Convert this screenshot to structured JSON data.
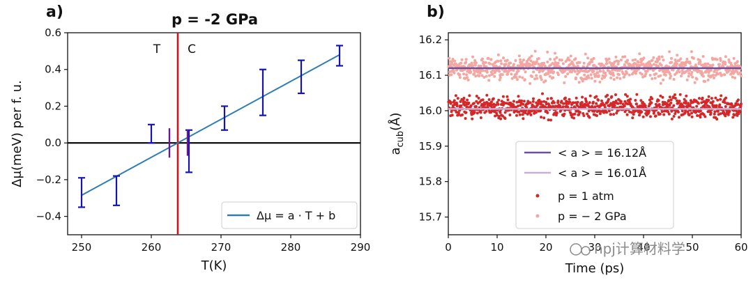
{
  "chart_data": [
    {
      "panel": "a)",
      "type": "scatter",
      "title": "p = -2 GPa",
      "xlabel": "T(K)",
      "ylabel": "Δμ(meV) per f. u.",
      "xlim": [
        248,
        290
      ],
      "ylim": [
        -0.5,
        0.6
      ],
      "xticks": [
        "250",
        "260",
        "270",
        "280",
        "290"
      ],
      "yticks": [
        "−0.4",
        "−0.2",
        "0.0",
        "0.2",
        "0.4",
        "0.6"
      ],
      "xtick_values": [
        250,
        260,
        270,
        280,
        290
      ],
      "ytick_values": [
        -0.4,
        -0.2,
        0.0,
        0.2,
        0.4,
        0.6
      ],
      "errorbars_blue": [
        {
          "x": 250,
          "lo": -0.35,
          "hi": -0.19
        },
        {
          "x": 255,
          "lo": -0.34,
          "hi": -0.18
        },
        {
          "x": 260,
          "lo": 0.0,
          "hi": 0.1
        },
        {
          "x": 265.4,
          "lo": -0.16,
          "hi": 0.07
        },
        {
          "x": 270.5,
          "lo": 0.07,
          "hi": 0.2
        },
        {
          "x": 276,
          "lo": 0.15,
          "hi": 0.4
        },
        {
          "x": 281.5,
          "lo": 0.27,
          "hi": 0.45
        },
        {
          "x": 287,
          "lo": 0.42,
          "hi": 0.53
        }
      ],
      "errorbars_purple": [
        {
          "x": 262.6,
          "lo": -0.08,
          "hi": 0.08
        },
        {
          "x": 265.2,
          "lo": -0.07,
          "hi": 0.07
        }
      ],
      "fit_line": {
        "x": [
          250,
          287
        ],
        "y": [
          -0.285,
          0.48
        ]
      },
      "vline_x": 263.8,
      "hline_y": 0,
      "region_labels": [
        "T",
        "C"
      ],
      "legend": [
        "Δμ = a · T + b"
      ],
      "legend_position": "bottom-right",
      "colors": {
        "fit": "#2f7db0",
        "errorbar": "#1414b4",
        "purple": "#6a1a8c",
        "vline": "#c8141e",
        "hline": "#000000"
      }
    },
    {
      "panel": "b)",
      "type": "scatter",
      "xlabel": "Time (ps)",
      "ylabel": "a_cub(Å)",
      "ylabel_main": "a",
      "ylabel_sub": "cub",
      "ylabel_tail": "(Å)",
      "xlim": [
        0,
        60
      ],
      "ylim": [
        15.65,
        16.22
      ],
      "xticks": [
        "0",
        "10",
        "20",
        "30",
        "40",
        "50",
        "60"
      ],
      "yticks": [
        "15.7",
        "15.8",
        "15.9",
        "16.0",
        "16.1",
        "16.2"
      ],
      "xtick_values": [
        0,
        10,
        20,
        30,
        40,
        50,
        60
      ],
      "ytick_values": [
        15.7,
        15.8,
        15.9,
        16.0,
        16.1,
        16.2
      ],
      "series": [
        {
          "name": "p = 1 atm",
          "mean": 16.01,
          "spread": 0.026,
          "color": "#d62728"
        },
        {
          "name": "p = − 2 GPa",
          "mean": 16.12,
          "spread": 0.03,
          "color": "#f4a6a0"
        }
      ],
      "hlines": [
        {
          "label": "< a > = 16.12Å",
          "y": 16.12,
          "color": "#6b4fa0"
        },
        {
          "label": "< a > = 16.01Å",
          "y": 16.005,
          "color": "#c9afd6"
        }
      ],
      "legend": [
        "< a > = 16.12Å",
        "< a > = 16.01Å",
        "p = 1 atm",
        "p = − 2 GPa"
      ],
      "legend_position": "lower-center"
    }
  ],
  "watermark": "npj计算材料学"
}
